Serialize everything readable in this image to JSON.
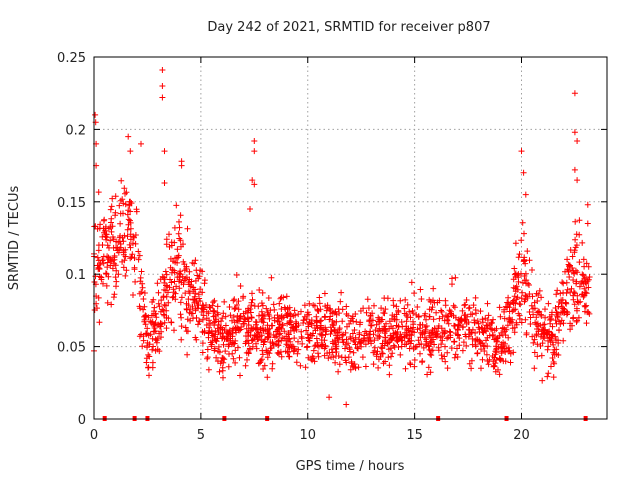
{
  "chart_data": {
    "type": "scatter",
    "title": "Day 242 of 2021, SRMTID for receiver p807",
    "xlabel": "GPS time / hours",
    "ylabel": "SRMTID / TECUs",
    "xlim": [
      0,
      24
    ],
    "ylim": [
      0,
      0.25
    ],
    "x_ticks": [
      0,
      5,
      10,
      15,
      20
    ],
    "x_tick_labels": [
      "0",
      "5",
      "10",
      "15",
      "20"
    ],
    "y_ticks": [
      0,
      0.05,
      0.1,
      0.15,
      0.2,
      0.25
    ],
    "y_tick_labels": [
      "0",
      "0.05",
      "0.1",
      "0.15",
      "0.2",
      "0.25"
    ],
    "grid": true,
    "marker": "+",
    "color": "#ff0000",
    "data_gap_markers_x": [
      0.5,
      1.9,
      2.5,
      6.1,
      8.1,
      16.1,
      19.3,
      23.0
    ],
    "envelope": [
      {
        "x": 0.0,
        "center": 0.115,
        "spread": 0.035
      },
      {
        "x": 0.5,
        "center": 0.11,
        "spread": 0.035
      },
      {
        "x": 1.0,
        "center": 0.12,
        "spread": 0.04
      },
      {
        "x": 1.5,
        "center": 0.13,
        "spread": 0.035
      },
      {
        "x": 2.0,
        "center": 0.115,
        "spread": 0.035
      },
      {
        "x": 2.5,
        "center": 0.05,
        "spread": 0.02
      },
      {
        "x": 3.0,
        "center": 0.065,
        "spread": 0.025
      },
      {
        "x": 3.5,
        "center": 0.095,
        "spread": 0.035
      },
      {
        "x": 4.0,
        "center": 0.1,
        "spread": 0.035
      },
      {
        "x": 4.5,
        "center": 0.085,
        "spread": 0.03
      },
      {
        "x": 5.0,
        "center": 0.075,
        "spread": 0.025
      },
      {
        "x": 6.0,
        "center": 0.055,
        "spread": 0.02
      },
      {
        "x": 7.0,
        "center": 0.065,
        "spread": 0.025
      },
      {
        "x": 8.0,
        "center": 0.06,
        "spread": 0.022
      },
      {
        "x": 9.0,
        "center": 0.065,
        "spread": 0.022
      },
      {
        "x": 10.0,
        "center": 0.062,
        "spread": 0.022
      },
      {
        "x": 11.0,
        "center": 0.058,
        "spread": 0.02
      },
      {
        "x": 12.0,
        "center": 0.055,
        "spread": 0.02
      },
      {
        "x": 13.0,
        "center": 0.06,
        "spread": 0.02
      },
      {
        "x": 14.0,
        "center": 0.06,
        "spread": 0.02
      },
      {
        "x": 15.0,
        "center": 0.062,
        "spread": 0.022
      },
      {
        "x": 16.0,
        "center": 0.058,
        "spread": 0.02
      },
      {
        "x": 17.0,
        "center": 0.065,
        "spread": 0.022
      },
      {
        "x": 18.0,
        "center": 0.06,
        "spread": 0.02
      },
      {
        "x": 19.0,
        "center": 0.05,
        "spread": 0.018
      },
      {
        "x": 19.5,
        "center": 0.07,
        "spread": 0.025
      },
      {
        "x": 20.0,
        "center": 0.1,
        "spread": 0.03
      },
      {
        "x": 20.5,
        "center": 0.075,
        "spread": 0.03
      },
      {
        "x": 21.0,
        "center": 0.06,
        "spread": 0.025
      },
      {
        "x": 21.5,
        "center": 0.055,
        "spread": 0.022
      },
      {
        "x": 22.0,
        "center": 0.085,
        "spread": 0.03
      },
      {
        "x": 22.5,
        "center": 0.1,
        "spread": 0.035
      },
      {
        "x": 23.0,
        "center": 0.09,
        "spread": 0.03
      }
    ],
    "notable_points": [
      {
        "x": 0.05,
        "y": 0.21
      },
      {
        "x": 0.08,
        "y": 0.205
      },
      {
        "x": 0.1,
        "y": 0.19
      },
      {
        "x": 0.1,
        "y": 0.175
      },
      {
        "x": 0.0,
        "y": 0.047
      },
      {
        "x": 1.6,
        "y": 0.195
      },
      {
        "x": 1.7,
        "y": 0.185
      },
      {
        "x": 2.2,
        "y": 0.19
      },
      {
        "x": 3.2,
        "y": 0.241
      },
      {
        "x": 3.2,
        "y": 0.23
      },
      {
        "x": 3.2,
        "y": 0.222
      },
      {
        "x": 3.3,
        "y": 0.185
      },
      {
        "x": 3.3,
        "y": 0.163
      },
      {
        "x": 4.1,
        "y": 0.178
      },
      {
        "x": 4.1,
        "y": 0.175
      },
      {
        "x": 7.5,
        "y": 0.192
      },
      {
        "x": 7.5,
        "y": 0.185
      },
      {
        "x": 7.4,
        "y": 0.165
      },
      {
        "x": 7.5,
        "y": 0.162
      },
      {
        "x": 7.3,
        "y": 0.145
      },
      {
        "x": 11.0,
        "y": 0.015
      },
      {
        "x": 11.8,
        "y": 0.01
      },
      {
        "x": 20.0,
        "y": 0.185
      },
      {
        "x": 20.1,
        "y": 0.17
      },
      {
        "x": 20.2,
        "y": 0.155
      },
      {
        "x": 22.5,
        "y": 0.225
      },
      {
        "x": 22.5,
        "y": 0.198
      },
      {
        "x": 22.6,
        "y": 0.192
      },
      {
        "x": 22.5,
        "y": 0.172
      },
      {
        "x": 22.6,
        "y": 0.165
      },
      {
        "x": 23.1,
        "y": 0.148
      },
      {
        "x": 23.1,
        "y": 0.135
      }
    ]
  }
}
